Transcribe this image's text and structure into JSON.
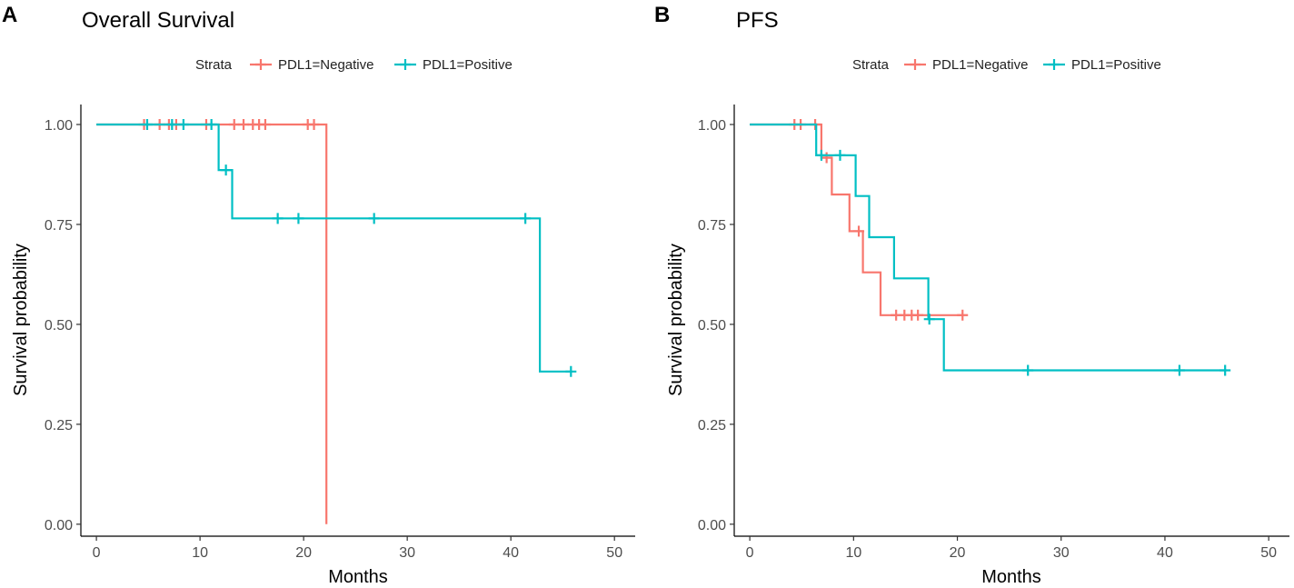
{
  "colors": {
    "negative": "#F8766D",
    "positive": "#00BFC4",
    "axis": "#000000",
    "tick_text": "#4d4d4d"
  },
  "chart_data": [
    {
      "type": "line",
      "panel": "A",
      "title": "Overall Survival",
      "xlabel": "Months",
      "ylabel": "Survival probability",
      "xlim": [
        -1.5,
        52
      ],
      "ylim": [
        -0.03,
        1.05
      ],
      "xticks": [
        0,
        10,
        20,
        30,
        40,
        50
      ],
      "xtick_labels": [
        "0",
        "10",
        "20",
        "30",
        "40",
        "50"
      ],
      "yticks": [
        0,
        0.25,
        0.5,
        0.75,
        1.0
      ],
      "ytick_labels": [
        "0.00",
        "0.25",
        "0.50",
        "0.75",
        "1.00"
      ],
      "legend": {
        "title": "Strata",
        "position": "top",
        "entries": [
          "PDL1=Negative",
          "PDL1=Positive"
        ]
      },
      "series": [
        {
          "name": "PDL1=Negative",
          "color_key": "negative",
          "steps": [
            [
              0,
              1.0
            ],
            [
              22.2,
              1.0
            ],
            [
              22.2,
              0.0
            ]
          ],
          "censors": [
            [
              4.6,
              1.0
            ],
            [
              6.1,
              1.0
            ],
            [
              7.0,
              1.0
            ],
            [
              7.7,
              1.0
            ],
            [
              10.6,
              1.0
            ],
            [
              13.3,
              1.0
            ],
            [
              14.2,
              1.0
            ],
            [
              15.1,
              1.0
            ],
            [
              15.7,
              1.0
            ],
            [
              16.3,
              1.0
            ],
            [
              20.4,
              1.0
            ],
            [
              21.0,
              1.0
            ]
          ]
        },
        {
          "name": "PDL1=Positive",
          "color_key": "positive",
          "steps": [
            [
              0,
              1.0
            ],
            [
              11.8,
              1.0
            ],
            [
              11.8,
              0.886
            ],
            [
              13.1,
              0.886
            ],
            [
              13.1,
              0.765
            ],
            [
              42.8,
              0.765
            ],
            [
              42.8,
              0.382
            ],
            [
              45.9,
              0.382
            ]
          ],
          "censors": [
            [
              4.9,
              1.0
            ],
            [
              7.3,
              1.0
            ],
            [
              8.4,
              1.0
            ],
            [
              11.1,
              1.0
            ],
            [
              12.5,
              0.886
            ],
            [
              17.5,
              0.765
            ],
            [
              19.5,
              0.765
            ],
            [
              26.8,
              0.765
            ],
            [
              41.4,
              0.765
            ],
            [
              45.8,
              0.382
            ]
          ]
        }
      ]
    },
    {
      "type": "line",
      "panel": "B",
      "title": "PFS",
      "xlabel": "Months",
      "ylabel": "Survival probability",
      "xlim": [
        -1.5,
        52
      ],
      "ylim": [
        -0.03,
        1.05
      ],
      "xticks": [
        0,
        10,
        20,
        30,
        40,
        50
      ],
      "xtick_labels": [
        "0",
        "10",
        "20",
        "30",
        "40",
        "50"
      ],
      "yticks": [
        0,
        0.25,
        0.5,
        0.75,
        1.0
      ],
      "ytick_labels": [
        "0.00",
        "0.25",
        "0.50",
        "0.75",
        "1.00"
      ],
      "legend": {
        "title": "Strata",
        "position": "top",
        "entries": [
          "PDL1=Negative",
          "PDL1=Positive"
        ]
      },
      "series": [
        {
          "name": "PDL1=Negative",
          "color_key": "negative",
          "steps": [
            [
              0,
              1.0
            ],
            [
              6.9,
              1.0
            ],
            [
              6.9,
              0.917
            ],
            [
              7.9,
              0.917
            ],
            [
              7.9,
              0.825
            ],
            [
              9.6,
              0.825
            ],
            [
              9.6,
              0.733
            ],
            [
              10.9,
              0.733
            ],
            [
              10.9,
              0.63
            ],
            [
              12.6,
              0.63
            ],
            [
              12.6,
              0.523
            ],
            [
              20.6,
              0.523
            ]
          ],
          "censors": [
            [
              4.3,
              1.0
            ],
            [
              4.9,
              1.0
            ],
            [
              6.3,
              1.0
            ],
            [
              7.4,
              0.917
            ],
            [
              10.5,
              0.733
            ],
            [
              14.1,
              0.523
            ],
            [
              14.9,
              0.523
            ],
            [
              15.6,
              0.523
            ],
            [
              16.2,
              0.523
            ],
            [
              20.5,
              0.523
            ]
          ]
        },
        {
          "name": "PDL1=Positive",
          "color_key": "positive",
          "steps": [
            [
              0,
              1.0
            ],
            [
              6.4,
              1.0
            ],
            [
              6.4,
              0.923
            ],
            [
              10.2,
              0.923
            ],
            [
              10.2,
              0.821
            ],
            [
              11.5,
              0.821
            ],
            [
              11.5,
              0.718
            ],
            [
              13.9,
              0.718
            ],
            [
              13.9,
              0.615
            ],
            [
              17.2,
              0.615
            ],
            [
              17.2,
              0.513
            ],
            [
              18.7,
              0.513
            ],
            [
              18.7,
              0.385
            ],
            [
              45.9,
              0.385
            ]
          ],
          "censors": [
            [
              6.9,
              0.923
            ],
            [
              8.7,
              0.923
            ],
            [
              17.3,
              0.513
            ],
            [
              26.8,
              0.385
            ],
            [
              41.4,
              0.385
            ],
            [
              45.8,
              0.385
            ]
          ]
        }
      ]
    }
  ]
}
